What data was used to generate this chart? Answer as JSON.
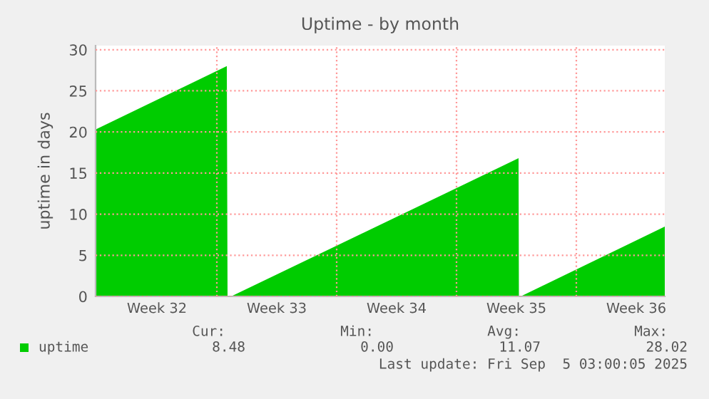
{
  "chart_data": {
    "type": "area",
    "title": "Uptime - by month",
    "ylabel": "uptime in days",
    "x": [
      "2025-08-03T22:00",
      "2025-08-11T14:00",
      "2025-08-11T15:00",
      "2025-08-11T20:00",
      "2025-08-28T15:00",
      "2025-08-28T15:30",
      "2025-08-28T18:00",
      "2025-09-06T04:00"
    ],
    "series": [
      {
        "name": "uptime",
        "color": "#00cc00",
        "values": [
          20.3,
          28,
          0,
          0,
          16.8,
          0,
          0,
          8.5
        ]
      }
    ],
    "xlim": [
      "2025-08-03T22:00",
      "2025-09-06T04:00"
    ],
    "xticks": [
      {
        "value": "2025-08-07T12:00",
        "label": "Week 32"
      },
      {
        "value": "2025-08-11",
        "label": null
      },
      {
        "value": "2025-08-14T12:00",
        "label": "Week 33"
      },
      {
        "value": "2025-08-18",
        "label": null
      },
      {
        "value": "2025-08-21T12:00",
        "label": "Week 34"
      },
      {
        "value": "2025-08-25",
        "label": null
      },
      {
        "value": "2025-08-28T12:00",
        "label": "Week 35"
      },
      {
        "value": "2025-09-01",
        "label": null
      },
      {
        "value": "2025-09-04T12:00",
        "label": "Week 36"
      }
    ],
    "ylim": [
      0,
      30.5
    ],
    "yticks": [
      0,
      5,
      10,
      15,
      20,
      25,
      30
    ],
    "grid": true,
    "legend": "bottom",
    "annotations": [
      "Cur:",
      "Min:",
      "Avg:",
      "Max:",
      "8.48",
      "0.00",
      "11.07",
      "28.02",
      "Last update: Fri Sep  5 03:00:05 2025"
    ]
  }
}
